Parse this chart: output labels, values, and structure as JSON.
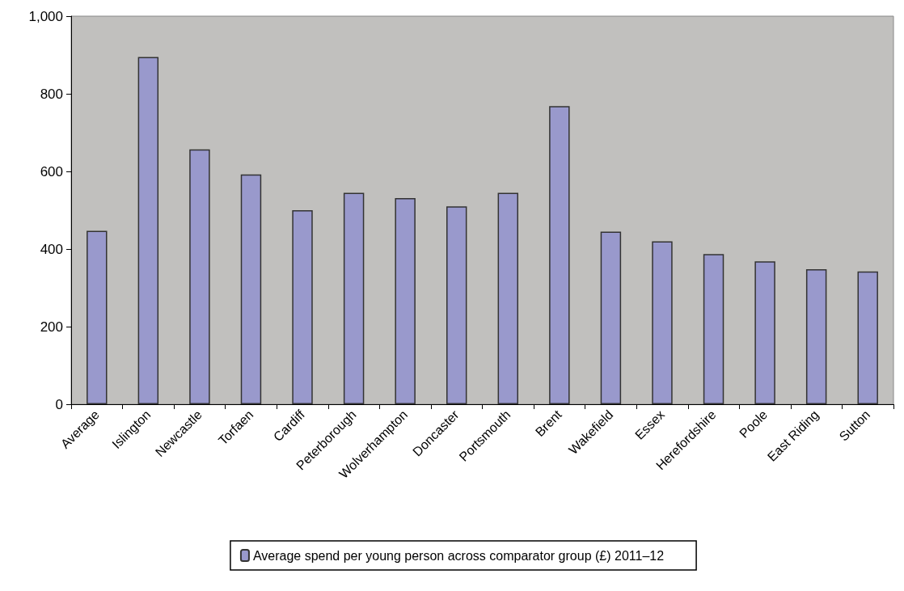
{
  "chart_data": {
    "type": "bar",
    "categories": [
      "Average",
      "Islington",
      "Newcastle",
      "Torfaen",
      "Cardiff",
      "Peterborough",
      "Wolverhampton",
      "Doncaster",
      "Portsmouth",
      "Brent",
      "Wakefield",
      "Essex",
      "Herefordshire",
      "Poole",
      "East Riding",
      "Sutton"
    ],
    "series": [
      {
        "name": "Average spend per young person across comparator group (£) 2011–12",
        "color": "#9999cc",
        "values": [
          447,
          895,
          657,
          592,
          500,
          545,
          531,
          510,
          545,
          768,
          445,
          420,
          387,
          368,
          348,
          342
        ]
      }
    ],
    "ylim": [
      0,
      1000
    ],
    "yticks": [
      0,
      200,
      400,
      600,
      800,
      {
        "value": 1000,
        "label": "1,000"
      }
    ],
    "grid": false,
    "legend": "bottom"
  }
}
